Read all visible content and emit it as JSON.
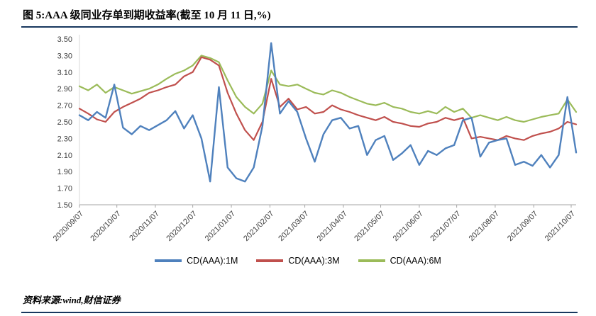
{
  "header": {
    "title": "图 5:AAA 级同业存单到期收益率(截至 10 月 11 日,%)"
  },
  "footer": {
    "source": "资料来源:wind,财信证券"
  },
  "colors": {
    "rule": "#17375E",
    "axis_text": "#404040",
    "axis_line": "#A6A6A6"
  },
  "chart_data": {
    "type": "line",
    "title": "AAA级同业存单到期收益率(截至10月11日,%)",
    "xlabel": "",
    "ylabel": "",
    "ylim": [
      1.5,
      3.5
    ],
    "y_ticks": [
      1.5,
      1.7,
      1.9,
      2.1,
      2.3,
      2.5,
      2.7,
      2.9,
      3.1,
      3.3,
      3.5
    ],
    "grid": false,
    "legend_position": "bottom",
    "x_sampling": "approx. weekly points from 2020/09/07 to 2021/10/11",
    "x_tick_labels": [
      "2020/09/07",
      "2020/10/07",
      "2020/11/07",
      "2020/12/07",
      "2021/01/07",
      "2021/02/07",
      "2021/03/07",
      "2021/04/07",
      "2021/05/07",
      "2021/06/07",
      "2021/07/07",
      "2021/08/07",
      "2021/09/07",
      "2021/10/07"
    ],
    "x_tick_positions": [
      0,
      4.29,
      8.71,
      13.0,
      17.43,
      21.86,
      25.86,
      30.29,
      34.57,
      39.0,
      43.29,
      47.71,
      52.14,
      56.43
    ],
    "series": [
      {
        "name": "CD(AAA):1M",
        "color": "#4F81BD",
        "values": [
          2.58,
          2.52,
          2.62,
          2.55,
          2.95,
          2.43,
          2.35,
          2.45,
          2.4,
          2.46,
          2.52,
          2.63,
          2.42,
          2.58,
          2.3,
          1.78,
          2.92,
          1.95,
          1.82,
          1.78,
          1.95,
          2.45,
          3.45,
          2.6,
          2.75,
          2.62,
          2.3,
          2.02,
          2.35,
          2.52,
          2.55,
          2.42,
          2.45,
          2.1,
          2.28,
          2.33,
          2.04,
          2.12,
          2.22,
          1.98,
          2.15,
          2.1,
          2.18,
          2.22,
          2.52,
          2.55,
          2.08,
          2.25,
          2.28,
          2.3,
          1.98,
          2.02,
          1.97,
          2.1,
          1.95,
          2.1,
          2.8,
          2.13
        ]
      },
      {
        "name": "CD(AAA):3M",
        "color": "#C0504D",
        "values": [
          2.66,
          2.6,
          2.53,
          2.5,
          2.62,
          2.68,
          2.73,
          2.78,
          2.85,
          2.88,
          2.92,
          2.95,
          3.05,
          3.1,
          3.28,
          3.25,
          3.18,
          2.85,
          2.6,
          2.4,
          2.28,
          2.5,
          3.02,
          2.68,
          2.78,
          2.65,
          2.68,
          2.6,
          2.62,
          2.7,
          2.65,
          2.62,
          2.58,
          2.55,
          2.52,
          2.56,
          2.5,
          2.48,
          2.45,
          2.44,
          2.48,
          2.5,
          2.55,
          2.52,
          2.55,
          2.3,
          2.32,
          2.3,
          2.28,
          2.33,
          2.3,
          2.28,
          2.33,
          2.36,
          2.38,
          2.42,
          2.5,
          2.47
        ]
      },
      {
        "name": "CD(AAA):6M",
        "color": "#9BBB59",
        "values": [
          2.93,
          2.88,
          2.95,
          2.85,
          2.92,
          2.88,
          2.84,
          2.87,
          2.9,
          2.95,
          3.02,
          3.08,
          3.12,
          3.18,
          3.3,
          3.27,
          3.22,
          3.0,
          2.8,
          2.68,
          2.6,
          2.72,
          3.12,
          2.95,
          2.93,
          2.95,
          2.9,
          2.85,
          2.83,
          2.88,
          2.85,
          2.8,
          2.76,
          2.72,
          2.7,
          2.73,
          2.68,
          2.66,
          2.62,
          2.6,
          2.63,
          2.6,
          2.68,
          2.62,
          2.66,
          2.55,
          2.58,
          2.55,
          2.52,
          2.56,
          2.52,
          2.5,
          2.53,
          2.56,
          2.58,
          2.6,
          2.77,
          2.62
        ]
      }
    ]
  }
}
